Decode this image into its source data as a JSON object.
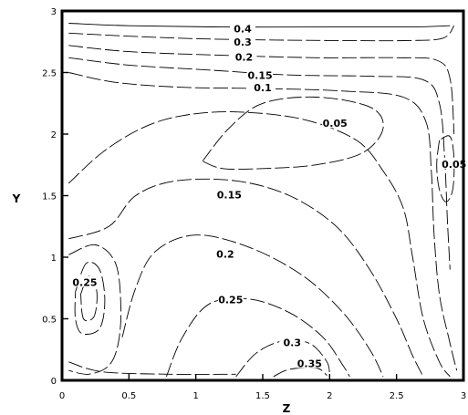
{
  "chart_data": {
    "type": "contour",
    "xlabel": "Z",
    "ylabel": "Y",
    "xlim": [
      0,
      3
    ],
    "ylim": [
      0,
      3
    ],
    "x_ticks": [
      {
        "value": 0,
        "label": "0"
      },
      {
        "value": 0.5,
        "label": "0.5"
      },
      {
        "value": 1,
        "label": "1"
      },
      {
        "value": 1.5,
        "label": "1.5"
      },
      {
        "value": 2,
        "label": "2"
      },
      {
        "value": 2.5,
        "label": "2.5"
      },
      {
        "value": 3,
        "label": "3"
      }
    ],
    "y_ticks": [
      {
        "value": 0,
        "label": "0"
      },
      {
        "value": 0.5,
        "label": "0.5"
      },
      {
        "value": 1,
        "label": "1"
      },
      {
        "value": 1.5,
        "label": "1.5"
      },
      {
        "value": 2,
        "label": "2"
      },
      {
        "value": 2.5,
        "label": "2.5"
      },
      {
        "value": 3,
        "label": "3"
      }
    ],
    "contour_labels": [
      {
        "text": "0.4",
        "x": 1.35,
        "y": 2.85
      },
      {
        "text": "0.3",
        "x": 1.35,
        "y": 2.74
      },
      {
        "text": "0.2",
        "x": 1.36,
        "y": 2.62
      },
      {
        "text": "0.15",
        "x": 1.48,
        "y": 2.47
      },
      {
        "text": "0.1",
        "x": 1.5,
        "y": 2.37
      },
      {
        "text": "0.05",
        "x": 2.04,
        "y": 2.08
      },
      {
        "text": "0.05",
        "x": 2.93,
        "y": 1.75
      },
      {
        "text": "0.15",
        "x": 1.25,
        "y": 1.5
      },
      {
        "text": "0.2",
        "x": 1.22,
        "y": 1.02
      },
      {
        "text": "0.25",
        "x": 1.26,
        "y": 0.65
      },
      {
        "text": "0.25",
        "x": 0.17,
        "y": 0.79
      },
      {
        "text": "0.3",
        "x": 1.72,
        "y": 0.3
      },
      {
        "text": "0.35",
        "x": 1.85,
        "y": 0.13
      }
    ],
    "contours": [
      {
        "level": 0.4,
        "points": [
          [
            0.05,
            2.9
          ],
          [
            0.5,
            2.88
          ],
          [
            1.2,
            2.87
          ],
          [
            2.0,
            2.87
          ],
          [
            2.6,
            2.87
          ],
          [
            2.9,
            2.88
          ]
        ]
      },
      {
        "level": 0.3,
        "points": [
          [
            0.05,
            2.82
          ],
          [
            0.6,
            2.79
          ],
          [
            1.2,
            2.77
          ],
          [
            2.0,
            2.76
          ],
          [
            2.6,
            2.76
          ],
          [
            2.85,
            2.78
          ],
          [
            2.93,
            2.88
          ]
        ]
      },
      {
        "level": 0.2,
        "points": [
          [
            0.05,
            2.72
          ],
          [
            0.5,
            2.67
          ],
          [
            1.2,
            2.64
          ],
          [
            1.9,
            2.62
          ],
          [
            2.5,
            2.62
          ],
          [
            2.8,
            2.6
          ],
          [
            2.9,
            2.45
          ],
          [
            2.93,
            2.0
          ]
        ]
      },
      {
        "level": 0.15,
        "points": [
          [
            0.05,
            2.62
          ],
          [
            0.5,
            2.56
          ],
          [
            1.1,
            2.52
          ],
          [
            1.7,
            2.48
          ],
          [
            2.3,
            2.47
          ],
          [
            2.7,
            2.44
          ],
          [
            2.82,
            2.25
          ],
          [
            2.86,
            1.8
          ],
          [
            2.88,
            1.3
          ],
          [
            2.9,
            0.9
          ]
        ]
      },
      {
        "level": 0.1,
        "points": [
          [
            0.05,
            2.5
          ],
          [
            0.4,
            2.42
          ],
          [
            0.9,
            2.38
          ],
          [
            1.5,
            2.37
          ],
          [
            2.1,
            2.35
          ],
          [
            2.55,
            2.3
          ],
          [
            2.72,
            2.1
          ],
          [
            2.76,
            1.7
          ],
          [
            2.78,
            1.2
          ],
          [
            2.82,
            0.7
          ],
          [
            2.9,
            0.3
          ],
          [
            2.95,
            0.08
          ]
        ]
      },
      {
        "level": 0.05,
        "points": [
          [
            1.05,
            1.78
          ],
          [
            1.25,
            2.05
          ],
          [
            1.5,
            2.25
          ],
          [
            1.9,
            2.3
          ],
          [
            2.3,
            2.22
          ],
          [
            2.4,
            2.05
          ],
          [
            2.25,
            1.85
          ],
          [
            1.9,
            1.75
          ],
          [
            1.5,
            1.72
          ],
          [
            1.2,
            1.72
          ],
          [
            1.05,
            1.78
          ]
        ]
      },
      {
        "level": 0.05,
        "points": [
          [
            2.82,
            1.95
          ],
          [
            2.8,
            1.75
          ],
          [
            2.82,
            1.55
          ],
          [
            2.87,
            1.45
          ],
          [
            2.92,
            1.55
          ],
          [
            2.93,
            1.8
          ],
          [
            2.9,
            1.98
          ],
          [
            2.82,
            1.95
          ]
        ]
      },
      {
        "level": 0.1,
        "points": [
          [
            0.05,
            1.6
          ],
          [
            0.3,
            1.85
          ],
          [
            0.6,
            2.05
          ],
          [
            0.9,
            2.15
          ],
          [
            1.3,
            2.18
          ],
          [
            1.8,
            2.12
          ],
          [
            2.2,
            1.95
          ],
          [
            2.4,
            1.7
          ],
          [
            2.55,
            1.4
          ],
          [
            2.62,
            1.0
          ],
          [
            2.7,
            0.5
          ],
          [
            2.82,
            0.15
          ],
          [
            2.9,
            0.03
          ]
        ]
      },
      {
        "level": 0.15,
        "points": [
          [
            0.05,
            1.15
          ],
          [
            0.35,
            1.25
          ],
          [
            0.55,
            1.5
          ],
          [
            0.85,
            1.62
          ],
          [
            1.3,
            1.62
          ],
          [
            1.7,
            1.5
          ],
          [
            2.05,
            1.25
          ],
          [
            2.3,
            0.9
          ],
          [
            2.5,
            0.5
          ],
          [
            2.62,
            0.2
          ],
          [
            2.7,
            0.03
          ]
        ]
      },
      {
        "level": 0.2,
        "points": [
          [
            0.45,
            0.35
          ],
          [
            0.55,
            0.75
          ],
          [
            0.7,
            1.05
          ],
          [
            1.0,
            1.18
          ],
          [
            1.4,
            1.08
          ],
          [
            1.8,
            0.85
          ],
          [
            2.1,
            0.55
          ],
          [
            2.3,
            0.25
          ],
          [
            2.4,
            0.03
          ]
        ]
      },
      {
        "level": 0.25,
        "points": [
          [
            0.78,
            0.03
          ],
          [
            0.9,
            0.35
          ],
          [
            1.1,
            0.62
          ],
          [
            1.4,
            0.66
          ],
          [
            1.7,
            0.55
          ],
          [
            1.95,
            0.35
          ],
          [
            2.1,
            0.12
          ],
          [
            2.15,
            0.03
          ]
        ]
      },
      {
        "level": 0.3,
        "points": [
          [
            1.3,
            0.03
          ],
          [
            1.45,
            0.22
          ],
          [
            1.65,
            0.32
          ],
          [
            1.85,
            0.3
          ],
          [
            1.98,
            0.15
          ],
          [
            2.0,
            0.03
          ]
        ]
      },
      {
        "level": 0.35,
        "points": [
          [
            1.58,
            0.03
          ],
          [
            1.7,
            0.09
          ],
          [
            1.9,
            0.1
          ],
          [
            1.98,
            0.04
          ]
        ]
      },
      {
        "level": 0.25,
        "points": [
          [
            0.1,
            0.72
          ],
          [
            0.18,
            0.95
          ],
          [
            0.28,
            0.9
          ],
          [
            0.32,
            0.65
          ],
          [
            0.28,
            0.42
          ],
          [
            0.15,
            0.38
          ],
          [
            0.1,
            0.5
          ],
          [
            0.1,
            0.72
          ]
        ]
      },
      {
        "level": 0.3,
        "points": [
          [
            0.14,
            0.7
          ],
          [
            0.2,
            0.85
          ],
          [
            0.26,
            0.72
          ],
          [
            0.24,
            0.52
          ],
          [
            0.16,
            0.5
          ],
          [
            0.14,
            0.7
          ]
        ]
      },
      {
        "level": 0.2,
        "points": [
          [
            0.05,
            1.02
          ],
          [
            0.25,
            1.1
          ],
          [
            0.4,
            0.95
          ],
          [
            0.44,
            0.6
          ],
          [
            0.42,
            0.3
          ],
          [
            0.35,
            0.12
          ],
          [
            0.2,
            0.05
          ],
          [
            0.05,
            0.08
          ]
        ]
      },
      {
        "level": 0.3,
        "points": [
          [
            0.05,
            0.15
          ],
          [
            0.3,
            0.07
          ],
          [
            0.8,
            0.05
          ],
          [
            1.3,
            0.05
          ]
        ]
      }
    ]
  }
}
